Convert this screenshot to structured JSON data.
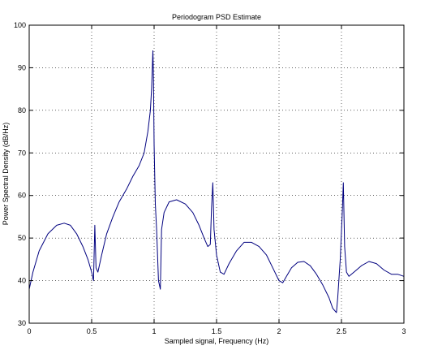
{
  "chart_data": {
    "type": "line",
    "title": "Periodogram PSD Estimate",
    "xlabel": "Sampled signal, Frequency (Hz)",
    "ylabel": "Power Spectral Density (dB/Hz)",
    "xlim": [
      0,
      3
    ],
    "ylim": [
      30,
      100
    ],
    "xticks": [
      "0",
      "0.5",
      "1",
      "1.5",
      "2",
      "2.5",
      "3"
    ],
    "yticks": [
      "30",
      "40",
      "50",
      "60",
      "70",
      "80",
      "90",
      "100"
    ],
    "grid": true,
    "line_color": "#00007f",
    "series": [
      {
        "x": [
          0,
          0.03,
          0.08,
          0.15,
          0.22,
          0.28,
          0.33,
          0.38,
          0.43,
          0.47,
          0.5,
          0.515,
          0.525,
          0.535,
          0.55,
          0.58,
          0.62,
          0.67,
          0.72,
          0.78,
          0.83,
          0.88,
          0.92,
          0.95,
          0.97,
          0.98,
          0.99,
          0.995,
          1.0,
          1.01,
          1.02,
          1.035,
          1.05,
          1.06,
          1.08,
          1.12,
          1.18,
          1.25,
          1.31,
          1.36,
          1.4,
          1.43,
          1.45,
          1.46,
          1.47,
          1.48,
          1.5,
          1.53,
          1.56,
          1.6,
          1.66,
          1.72,
          1.78,
          1.84,
          1.9,
          1.95,
          2.0,
          2.03,
          2.06,
          2.1,
          2.15,
          2.2,
          2.25,
          2.3,
          2.35,
          2.4,
          2.43,
          2.46,
          2.47,
          2.49,
          2.505,
          2.515,
          2.525,
          2.54,
          2.56,
          2.6,
          2.66,
          2.72,
          2.78,
          2.84,
          2.9,
          2.95,
          3.0
        ],
        "y": [
          38,
          42,
          47,
          51,
          53,
          53.5,
          53,
          51,
          48,
          45,
          42,
          40,
          53,
          43,
          42,
          46,
          51,
          55,
          58.5,
          61.5,
          64.5,
          67,
          70,
          75,
          80,
          85,
          94,
          88,
          72,
          58,
          52,
          40,
          38,
          52,
          56,
          58.5,
          59,
          58,
          56,
          53,
          50,
          48,
          48.5,
          57,
          63,
          52,
          46,
          42,
          41.5,
          44,
          47,
          49,
          49,
          48,
          46,
          43,
          40,
          39.5,
          41,
          43,
          44.3,
          44.5,
          43.5,
          41.5,
          39,
          36,
          33.5,
          32.5,
          36,
          45,
          55,
          63,
          48,
          42,
          41,
          42,
          43.5,
          44.5,
          44,
          42.5,
          41.5,
          41.5,
          41
        ]
      }
    ]
  }
}
